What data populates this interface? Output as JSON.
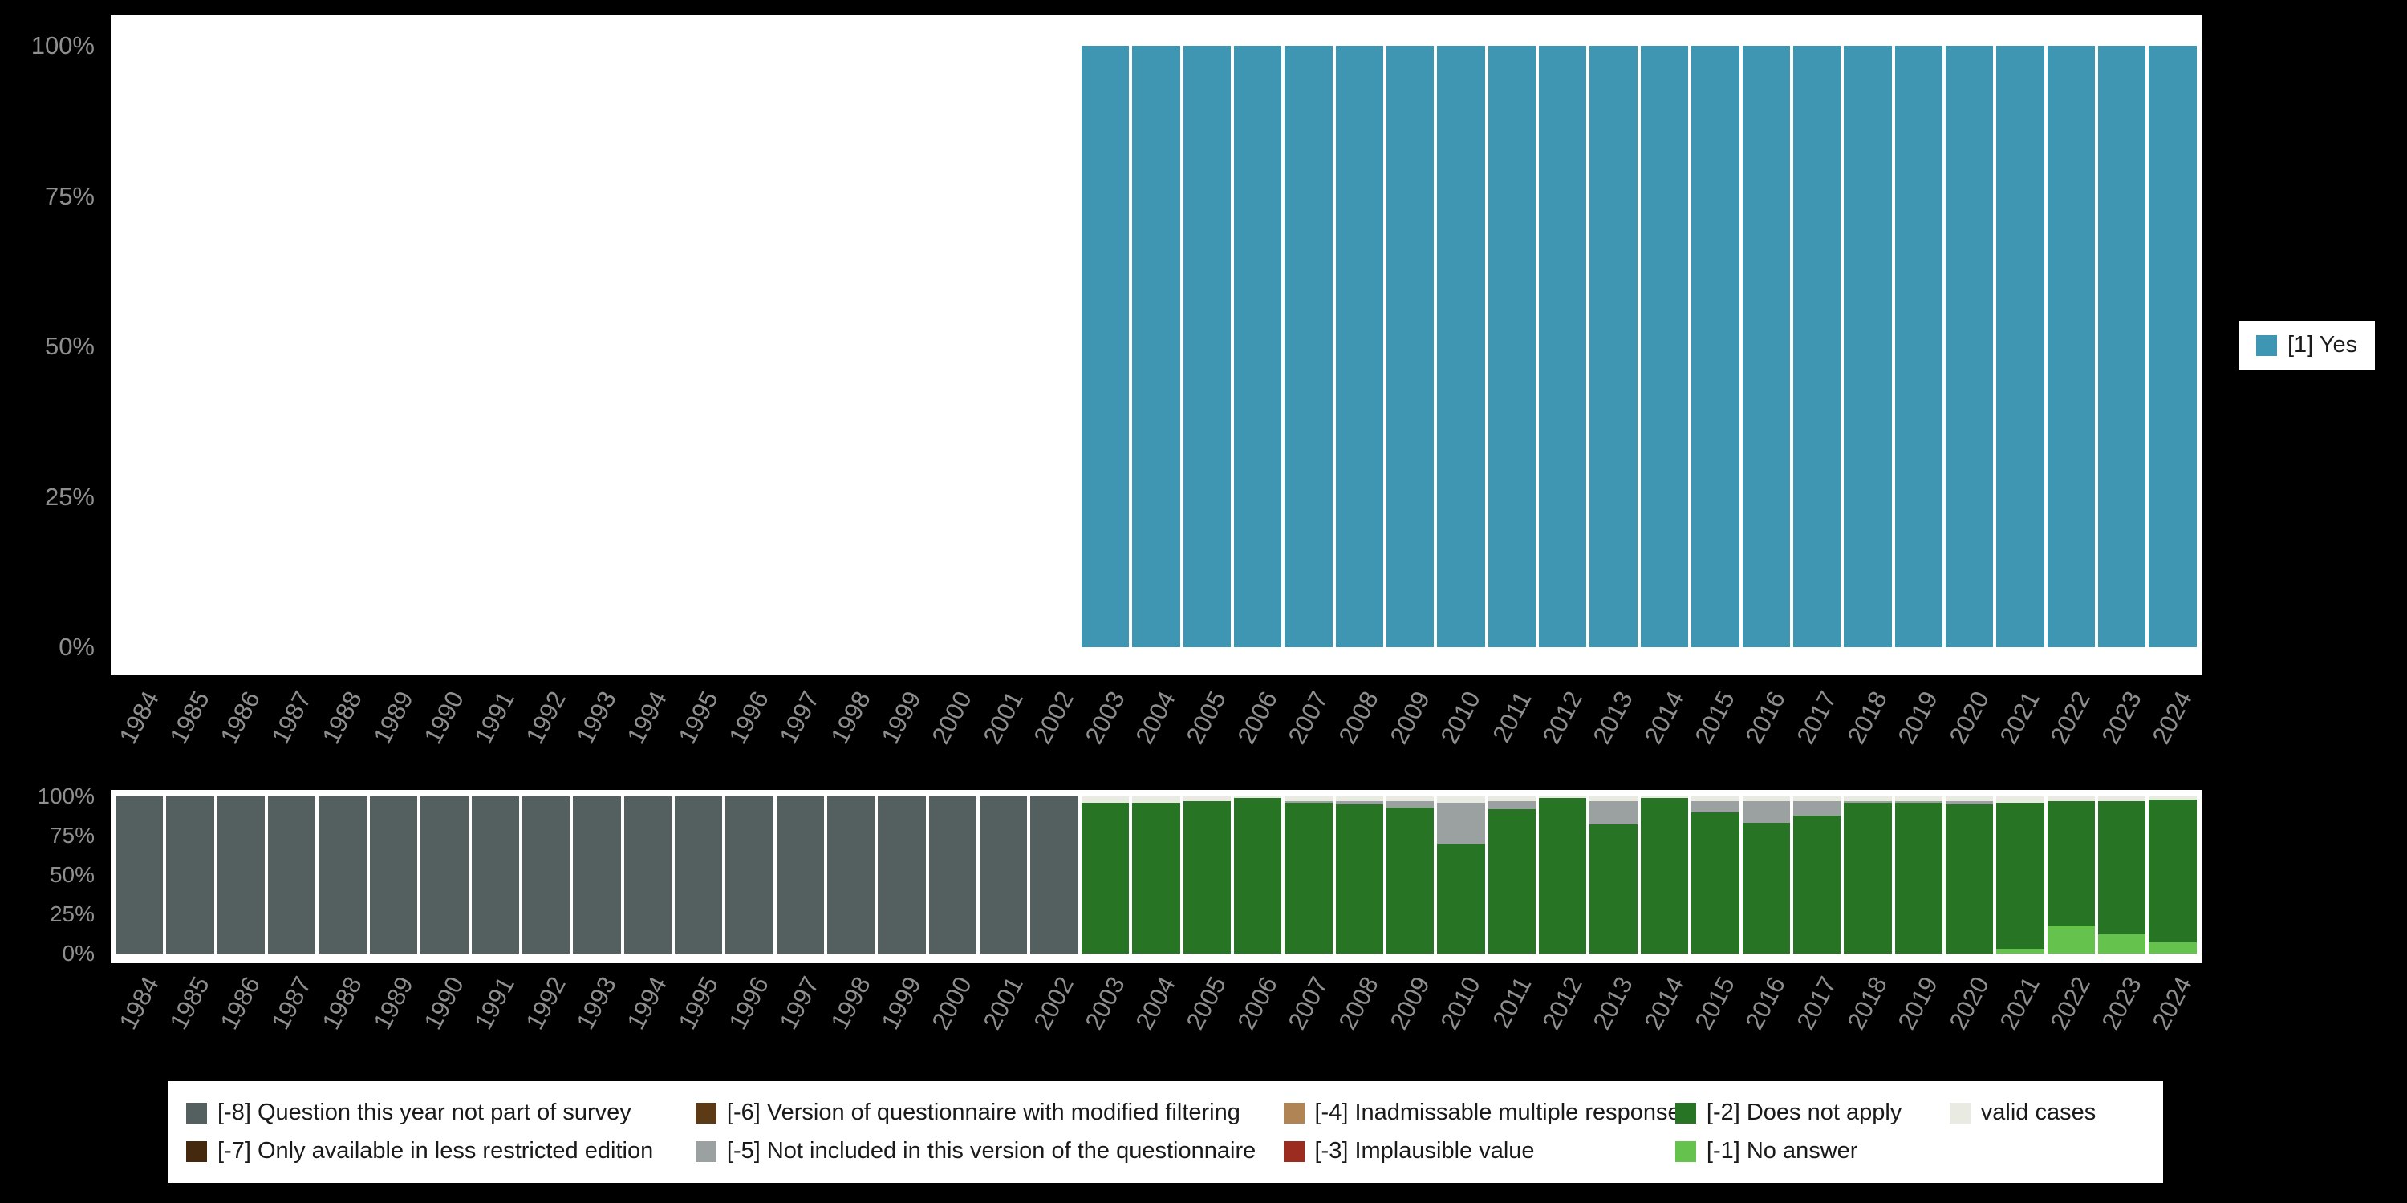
{
  "page": {
    "background": "#000000",
    "plot_background": "#ffffff",
    "axis_text_color": "#8f8f8f"
  },
  "chart_data": [
    {
      "id": "values-chart",
      "type": "bar",
      "stacked": true,
      "title": "",
      "xlabel": "",
      "ylabel": "",
      "ylim": [
        0,
        100
      ],
      "yticks": [
        "0%",
        "25%",
        "50%",
        "75%",
        "100%"
      ],
      "grid": false,
      "legend_position": "right",
      "categories": [
        "1984",
        "1985",
        "1986",
        "1987",
        "1988",
        "1989",
        "1990",
        "1991",
        "1992",
        "1993",
        "1994",
        "1995",
        "1996",
        "1997",
        "1998",
        "1999",
        "2000",
        "2001",
        "2002",
        "2003",
        "2004",
        "2005",
        "2006",
        "2007",
        "2008",
        "2009",
        "2010",
        "2011",
        "2012",
        "2013",
        "2014",
        "2015",
        "2016",
        "2017",
        "2018",
        "2019",
        "2020",
        "2021",
        "2022",
        "2023",
        "2024"
      ],
      "series": [
        {
          "name": "[1] Yes",
          "color": "#3e96b3",
          "values": [
            0,
            0,
            0,
            0,
            0,
            0,
            0,
            0,
            0,
            0,
            0,
            0,
            0,
            0,
            0,
            0,
            0,
            0,
            0,
            100,
            100,
            100,
            100,
            100,
            100,
            100,
            100,
            100,
            100,
            100,
            100,
            100,
            100,
            100,
            100,
            100,
            100,
            100,
            100,
            100,
            100
          ]
        }
      ]
    },
    {
      "id": "missings-chart",
      "type": "bar",
      "stacked": true,
      "title": "",
      "xlabel": "",
      "ylabel": "",
      "ylim": [
        0,
        100
      ],
      "yticks": [
        "0%",
        "25%",
        "50%",
        "75%",
        "100%"
      ],
      "grid": false,
      "legend_position": "bottom",
      "categories": [
        "1984",
        "1985",
        "1986",
        "1987",
        "1988",
        "1989",
        "1990",
        "1991",
        "1992",
        "1993",
        "1994",
        "1995",
        "1996",
        "1997",
        "1998",
        "1999",
        "2000",
        "2001",
        "2002",
        "2003",
        "2004",
        "2005",
        "2006",
        "2007",
        "2008",
        "2009",
        "2010",
        "2011",
        "2012",
        "2013",
        "2014",
        "2015",
        "2016",
        "2017",
        "2018",
        "2019",
        "2020",
        "2021",
        "2022",
        "2023",
        "2024"
      ],
      "series": [
        {
          "name": "[-1] No answer",
          "color": "#65c24c",
          "values": [
            0,
            0,
            0,
            0,
            0,
            0,
            0,
            0,
            0,
            0,
            0,
            0,
            0,
            0,
            0,
            0,
            0,
            0,
            0,
            0,
            0,
            0,
            0,
            0,
            0,
            0,
            0,
            0,
            0,
            0,
            0,
            0,
            0,
            0,
            0,
            0,
            0,
            3,
            18,
            12,
            7
          ]
        },
        {
          "name": "[-2] Does not apply",
          "color": "#287425",
          "values": [
            0,
            0,
            0,
            0,
            0,
            0,
            0,
            0,
            0,
            0,
            0,
            0,
            0,
            0,
            0,
            0,
            0,
            0,
            0,
            96,
            96,
            97,
            99,
            96,
            95,
            93,
            70,
            92,
            99,
            82,
            99,
            90,
            83,
            88,
            96,
            96,
            95,
            93,
            79,
            85,
            91
          ]
        },
        {
          "name": "[-5] Not included in this version of the questionnaire",
          "color": "#9ba1a1",
          "values": [
            0,
            0,
            0,
            0,
            0,
            0,
            0,
            0,
            0,
            0,
            0,
            0,
            0,
            0,
            0,
            0,
            0,
            0,
            0,
            0,
            0,
            0,
            0,
            1,
            2,
            4,
            26,
            5,
            0,
            15,
            0,
            7,
            14,
            9,
            1,
            1,
            2,
            0,
            0,
            0,
            0
          ]
        },
        {
          "name": "[-8] Question this year not part of survey",
          "color": "#546060",
          "values": [
            100,
            100,
            100,
            100,
            100,
            100,
            100,
            100,
            100,
            100,
            100,
            100,
            100,
            100,
            100,
            100,
            100,
            100,
            100,
            0,
            0,
            0,
            0,
            0,
            0,
            0,
            0,
            0,
            0,
            0,
            0,
            0,
            0,
            0,
            0,
            0,
            0,
            0,
            0,
            0,
            0
          ]
        },
        {
          "name": "valid cases",
          "color": "#e9ebe3",
          "values": [
            0,
            0,
            0,
            0,
            0,
            0,
            0,
            0,
            0,
            0,
            0,
            0,
            0,
            0,
            0,
            0,
            0,
            0,
            0,
            4,
            4,
            3,
            1,
            3,
            3,
            3,
            4,
            3,
            1,
            3,
            1,
            3,
            3,
            3,
            3,
            3,
            3,
            4,
            3,
            3,
            2
          ]
        }
      ]
    }
  ],
  "legend_bottom": {
    "items": [
      {
        "label": "[-8] Question this year not part of survey",
        "color": "#546060"
      },
      {
        "label": "[-6] Version of questionnaire with modified filtering",
        "color": "#5d3a16"
      },
      {
        "label": "[-4] Inadmissable multiple response",
        "color": "#b08455"
      },
      {
        "label": "[-2] Does not apply",
        "color": "#287425"
      },
      {
        "label": "valid cases",
        "color": "#e9ebe3"
      },
      {
        "label": "[-7] Only available in less restricted edition",
        "color": "#44290f"
      },
      {
        "label": "[-5] Not included in this version of the questionnaire",
        "color": "#9ba1a1"
      },
      {
        "label": "[-3] Implausible value",
        "color": "#9c2b20"
      },
      {
        "label": "[-1] No answer",
        "color": "#65c24c"
      }
    ]
  }
}
